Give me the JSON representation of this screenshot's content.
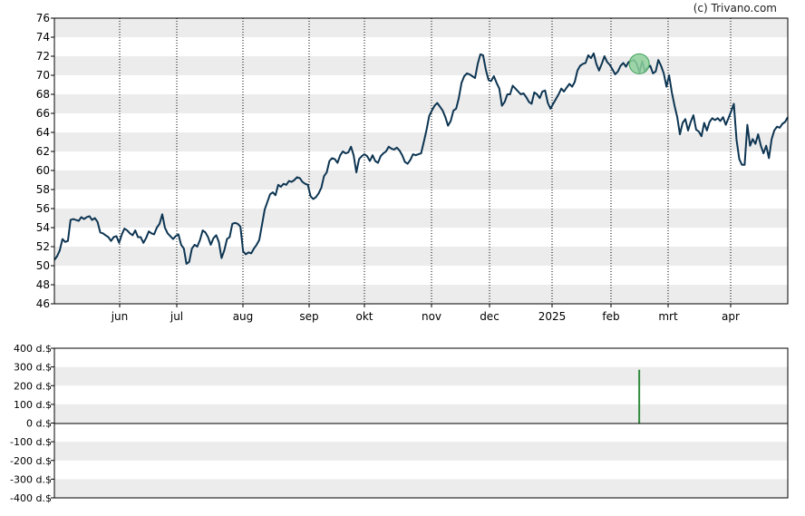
{
  "watermark": "(c) Trivano.com",
  "colors": {
    "line": "#0d3552",
    "band": "#ececec",
    "marker_fill": "#8fd19e",
    "marker_stroke": "#3f9f5a",
    "bar": "#2e8b3a"
  },
  "chart_data": [
    {
      "type": "line",
      "title": "",
      "xlabel": "",
      "ylabel": "",
      "ylim": [
        46,
        76
      ],
      "yticks": [
        "46",
        "48",
        "50",
        "52",
        "54",
        "56",
        "58",
        "60",
        "62",
        "64",
        "66",
        "68",
        "70",
        "72",
        "74",
        "76"
      ],
      "xticks": [
        "jun",
        "jul",
        "aug",
        "sep",
        "okt",
        "nov",
        "dec",
        "2025",
        "feb",
        "mrt",
        "apr"
      ],
      "grid": "horizontal alternating bands, vertical dotted month lines",
      "x_range": [
        0,
        237
      ],
      "series": [
        {
          "values": [
            50.6,
            51.0,
            51.6,
            52.8,
            52.5,
            52.6,
            54.8,
            54.9,
            54.8,
            54.7,
            55.1,
            54.9,
            55.1,
            55.2,
            54.8,
            55.0,
            54.6,
            53.5,
            53.4,
            53.2,
            53.0,
            52.6,
            53.0,
            53.1,
            52.4,
            53.3,
            53.9,
            53.7,
            53.4,
            53.2,
            53.7,
            53.0,
            53.0,
            52.4,
            52.9,
            53.6,
            53.4,
            53.3,
            54.0,
            54.4,
            55.4,
            54.0,
            53.4,
            53.1,
            52.8,
            53.1,
            53.3,
            52.2,
            51.8,
            50.2,
            50.4,
            51.8,
            52.2,
            52.0,
            52.7,
            53.7,
            53.5,
            53.0,
            52.2,
            52.9,
            53.2,
            52.5,
            50.8,
            51.6,
            52.8,
            53.0,
            54.4,
            54.5,
            54.4,
            54.1,
            51.5,
            51.2,
            51.4,
            51.3,
            51.8,
            52.2,
            52.7,
            54.3,
            55.9,
            56.7,
            57.5,
            57.7,
            57.4,
            58.5,
            58.3,
            58.6,
            58.5,
            58.9,
            58.8,
            59.0,
            59.3,
            59.2,
            58.8,
            58.6,
            58.5,
            57.3,
            57.0,
            57.2,
            57.6,
            58.2,
            59.4,
            59.8,
            61.0,
            61.3,
            61.2,
            60.8,
            61.6,
            62.0,
            61.8,
            61.9,
            62.5,
            61.6,
            59.8,
            61.2,
            61.5,
            61.7,
            61.5,
            61.0,
            61.6,
            61.0,
            60.8,
            61.5,
            61.8,
            62.0,
            62.5,
            62.3,
            62.2,
            62.4,
            62.1,
            61.6,
            60.9,
            60.7,
            61.1,
            61.7,
            61.6,
            61.7,
            61.8,
            63.0,
            64.2,
            65.7,
            66.3,
            66.8,
            67.1,
            66.7,
            66.3,
            65.6,
            64.7,
            65.2,
            66.3,
            66.5,
            67.6,
            69.2,
            69.9,
            70.2,
            70.1,
            69.9,
            69.7,
            71.2,
            72.2,
            72.1,
            70.6,
            69.5,
            69.4,
            69.9,
            69.2,
            68.6,
            66.8,
            67.2,
            68.0,
            68.0,
            68.9,
            68.6,
            68.3,
            68.0,
            68.1,
            67.7,
            67.2,
            67.0,
            68.2,
            68.0,
            67.6,
            68.3,
            68.4,
            67.1,
            66.5,
            67.0,
            67.5,
            68.0,
            68.6,
            68.3,
            68.7,
            69.1,
            68.8,
            69.3,
            70.5,
            71.0,
            71.2,
            71.3,
            72.1,
            71.8,
            72.3,
            71.2,
            70.5,
            71.2,
            72.0,
            71.4,
            71.1,
            70.6,
            70.1,
            70.4,
            71.0,
            71.3,
            70.9,
            71.4,
            71.5,
            71.6,
            71.2,
            70.3,
            71.5,
            70.4,
            70.8,
            71.0,
            70.2,
            70.4,
            71.6,
            71.0,
            70.2,
            68.8,
            70.0,
            68.2,
            66.8,
            65.6,
            63.8,
            65.0,
            65.4,
            64.2,
            65.1,
            65.8,
            64.3,
            64.1,
            63.6,
            65.0,
            64.2,
            65.1,
            65.5,
            65.3,
            65.5,
            65.2,
            65.6,
            64.8,
            65.5,
            66.2,
            67.0,
            63.2,
            61.2,
            60.6,
            60.6,
            64.8,
            62.6,
            63.3,
            62.8,
            63.8,
            62.6,
            61.8,
            62.6,
            61.3,
            63.3,
            64.2,
            64.6,
            64.5,
            64.9,
            65.1,
            65.6
          ]
        }
      ],
      "annotation": {
        "type": "circle-marker",
        "x": 189,
        "y": 71.2
      }
    },
    {
      "type": "bar",
      "title": "",
      "xlabel": "",
      "ylabel": "",
      "ylim": [
        -400,
        400
      ],
      "yticks": [
        "400 d.$",
        "300 d.$",
        "200 d.$",
        "100 d.$",
        "0 d.$",
        "-100 d.$",
        "-200 d.$",
        "-300 d.$",
        "-400 d.$"
      ],
      "x_range": [
        0,
        237
      ],
      "bars": [
        {
          "x": 189,
          "value": 285
        }
      ]
    }
  ]
}
